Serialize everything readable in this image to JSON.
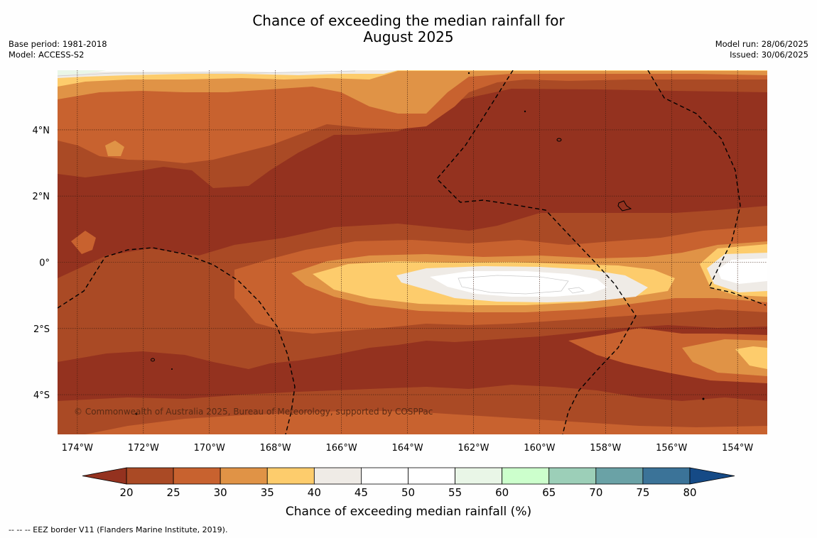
{
  "title_line1": "Chance of exceeding the median rainfall for",
  "title_line2": "August 2025",
  "meta_left": {
    "base_period": "Base period: 1981-2018",
    "model": "Model: ACCESS-S2"
  },
  "meta_right": {
    "model_run": "Model run: 28/06/2025",
    "issued": "Issued: 30/06/2025"
  },
  "map": {
    "lon_range": [
      -174.6,
      -153.1
    ],
    "lat_range": [
      -5.2,
      5.8
    ],
    "lon_ticks": [
      {
        "value": -174,
        "label": "174°W"
      },
      {
        "value": -172,
        "label": "172°W"
      },
      {
        "value": -170,
        "label": "170°W"
      },
      {
        "value": -168,
        "label": "168°W"
      },
      {
        "value": -166,
        "label": "166°W"
      },
      {
        "value": -164,
        "label": "164°W"
      },
      {
        "value": -162,
        "label": "162°W"
      },
      {
        "value": -160,
        "label": "160°W"
      },
      {
        "value": -158,
        "label": "158°W"
      },
      {
        "value": -156,
        "label": "156°W"
      },
      {
        "value": -154,
        "label": "154°W"
      }
    ],
    "lat_ticks": [
      {
        "value": 4,
        "label": "4°N"
      },
      {
        "value": 2,
        "label": "2°N"
      },
      {
        "value": 0,
        "label": "0°"
      },
      {
        "value": -2,
        "label": "2°S"
      },
      {
        "value": -4,
        "label": "4°S"
      }
    ],
    "copyright": "© Commonwealth of Australia 2025, Bureau of Meteorology, supported by COSPPac"
  },
  "colorbar": {
    "title": "Chance of exceeding median rainfall (%)",
    "levels": [
      20,
      25,
      30,
      35,
      40,
      45,
      50,
      55,
      60,
      65,
      70,
      75,
      80
    ],
    "colors": [
      "#aa4a25",
      "#c8622f",
      "#e09346",
      "#fdcc6c",
      "#efebe6",
      "#ffffff",
      "#ffffff",
      "#e9f6e7",
      "#ccffcc",
      "#9ccfb8",
      "#6aa2a6",
      "#3b7398"
    ],
    "under_color": "#94321f",
    "over_color": "#154a86"
  },
  "footnote": "--  --  -- EEZ border V11 (Flanders Marine Institute, 2019)."
}
